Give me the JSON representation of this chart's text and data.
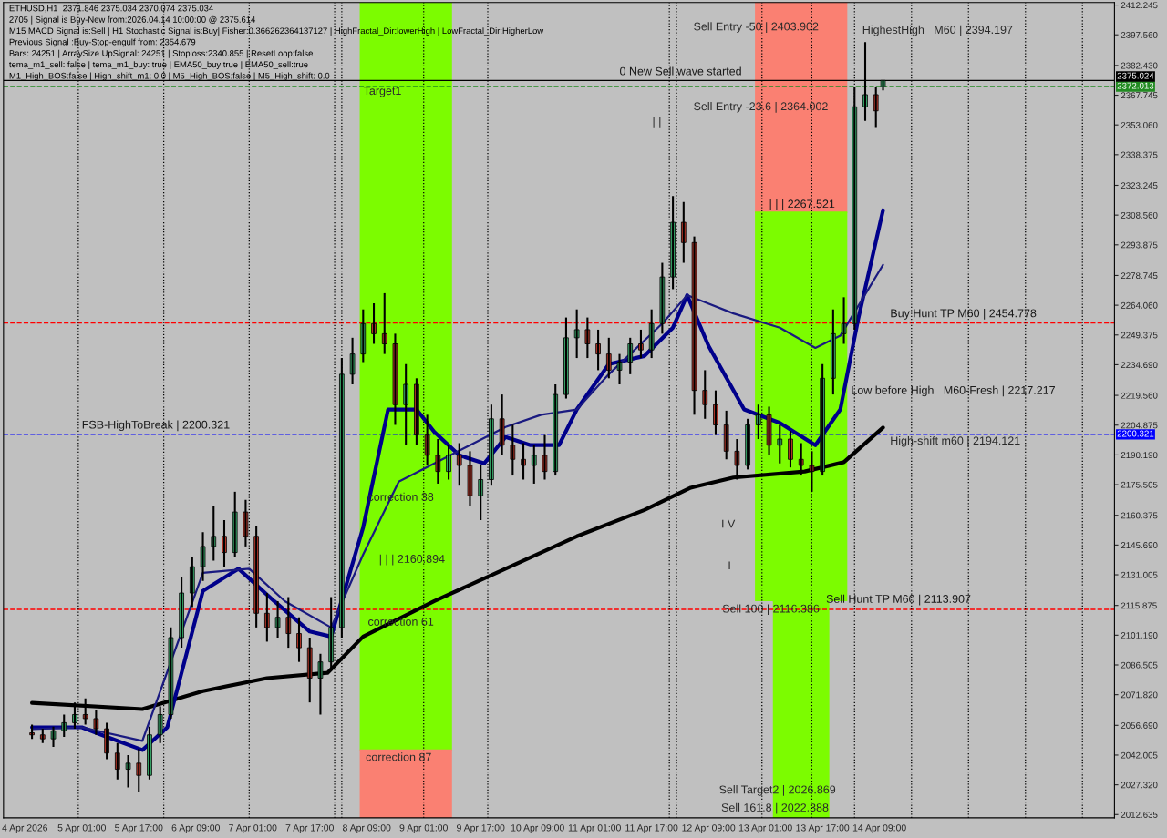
{
  "chart_data": {
    "type": "candlestick",
    "x": [
      "2026-04-04T11:00",
      "2026-04-04T14:00",
      "2026-04-04T17:00",
      "2026-04-04T20:00",
      "2026-04-04T23:00",
      "2026-04-05T02:00",
      "2026-04-05T05:00",
      "2026-04-05T08:00",
      "2026-04-05T11:00",
      "2026-04-05T14:00",
      "2026-04-05T17:00",
      "2026-04-05T20:00",
      "2026-04-05T23:00",
      "2026-04-06T02:00",
      "2026-04-06T05:00",
      "2026-04-06T08:00",
      "2026-04-06T11:00",
      "2026-04-06T14:00",
      "2026-04-06T17:00",
      "2026-04-06T20:00",
      "2026-04-06T23:00",
      "2026-04-07T02:00",
      "2026-04-07T05:00",
      "2026-04-07T08:00",
      "2026-04-07T11:00",
      "2026-04-07T14:00",
      "2026-04-07T17:00",
      "2026-04-07T20:00",
      "2026-04-07T23:00",
      "2026-04-08T02:00",
      "2026-04-08T05:00",
      "2026-04-08T08:00",
      "2026-04-08T11:00",
      "2026-04-08T14:00",
      "2026-04-08T17:00",
      "2026-04-08T20:00",
      "2026-04-08T23:00",
      "2026-04-09T02:00",
      "2026-04-09T05:00",
      "2026-04-09T08:00",
      "2026-04-09T11:00",
      "2026-04-09T14:00",
      "2026-04-09T17:00",
      "2026-04-09T20:00",
      "2026-04-09T23:00",
      "2026-04-10T02:00",
      "2026-04-10T05:00",
      "2026-04-10T08:00",
      "2026-04-10T11:00",
      "2026-04-10T14:00",
      "2026-04-10T17:00",
      "2026-04-10T20:00",
      "2026-04-10T23:00",
      "2026-04-11T02:00",
      "2026-04-11T05:00",
      "2026-04-11T08:00",
      "2026-04-11T11:00",
      "2026-04-11T14:00",
      "2026-04-11T17:00",
      "2026-04-11T20:00",
      "2026-04-11T23:00",
      "2026-04-12T02:00",
      "2026-04-12T05:00",
      "2026-04-12T08:00",
      "2026-04-12T11:00",
      "2026-04-12T14:00",
      "2026-04-12T17:00",
      "2026-04-12T20:00",
      "2026-04-12T23:00",
      "2026-04-13T02:00",
      "2026-04-13T05:00",
      "2026-04-13T08:00",
      "2026-04-13T11:00",
      "2026-04-13T14:00",
      "2026-04-13T17:00",
      "2026-04-13T20:00",
      "2026-04-13T23:00",
      "2026-04-14T02:00",
      "2026-04-14T05:00",
      "2026-04-14T08:00",
      "2026-04-14T10:00"
    ],
    "ohlc": [
      [
        2053,
        2057,
        2050,
        2052
      ],
      [
        2052,
        2055,
        2048,
        2050
      ],
      [
        2050,
        2056,
        2046,
        2054
      ],
      [
        2054,
        2062,
        2051,
        2058
      ],
      [
        2058,
        2068,
        2055,
        2062
      ],
      [
        2062,
        2070,
        2057,
        2060
      ],
      [
        2060,
        2064,
        2052,
        2055
      ],
      [
        2055,
        2058,
        2040,
        2043
      ],
      [
        2043,
        2048,
        2030,
        2035
      ],
      [
        2035,
        2042,
        2026,
        2038
      ],
      [
        2038,
        2045,
        2024,
        2032
      ],
      [
        2032,
        2056,
        2030,
        2052
      ],
      [
        2052,
        2066,
        2048,
        2062
      ],
      [
        2062,
        2105,
        2060,
        2100
      ],
      [
        2100,
        2130,
        2095,
        2122
      ],
      [
        2122,
        2140,
        2115,
        2135
      ],
      [
        2135,
        2152,
        2128,
        2145
      ],
      [
        2145,
        2165,
        2138,
        2150
      ],
      [
        2150,
        2158,
        2135,
        2142
      ],
      [
        2142,
        2172,
        2140,
        2162
      ],
      [
        2162,
        2168,
        2145,
        2150
      ],
      [
        2150,
        2155,
        2105,
        2112
      ],
      [
        2112,
        2122,
        2098,
        2105
      ],
      [
        2105,
        2118,
        2100,
        2110
      ],
      [
        2110,
        2120,
        2095,
        2102
      ],
      [
        2102,
        2110,
        2088,
        2095
      ],
      [
        2095,
        2100,
        2068,
        2080
      ],
      [
        2080,
        2092,
        2062,
        2088
      ],
      [
        2088,
        2120,
        2085,
        2105
      ],
      [
        2105,
        2238,
        2100,
        2230
      ],
      [
        2230,
        2248,
        2225,
        2240
      ],
      [
        2240,
        2262,
        2236,
        2255
      ],
      [
        2255,
        2265,
        2245,
        2250
      ],
      [
        2250,
        2270,
        2240,
        2245
      ],
      [
        2245,
        2250,
        2205,
        2215
      ],
      [
        2215,
        2235,
        2195,
        2225
      ],
      [
        2225,
        2228,
        2195,
        2200
      ],
      [
        2200,
        2210,
        2185,
        2190
      ],
      [
        2190,
        2198,
        2176,
        2182
      ],
      [
        2182,
        2195,
        2178,
        2190
      ],
      [
        2190,
        2196,
        2175,
        2185
      ],
      [
        2185,
        2192,
        2165,
        2170
      ],
      [
        2170,
        2185,
        2158,
        2178
      ],
      [
        2178,
        2215,
        2175,
        2208
      ],
      [
        2208,
        2220,
        2190,
        2195
      ],
      [
        2195,
        2205,
        2180,
        2188
      ],
      [
        2188,
        2196,
        2178,
        2185
      ],
      [
        2185,
        2195,
        2176,
        2190
      ],
      [
        2190,
        2200,
        2178,
        2182
      ],
      [
        2182,
        2225,
        2180,
        2220
      ],
      [
        2220,
        2258,
        2218,
        2248
      ],
      [
        2248,
        2262,
        2238,
        2252
      ],
      [
        2252,
        2258,
        2238,
        2245
      ],
      [
        2245,
        2252,
        2232,
        2240
      ],
      [
        2240,
        2248,
        2228,
        2232
      ],
      [
        2232,
        2240,
        2225,
        2236
      ],
      [
        2236,
        2248,
        2230,
        2245
      ],
      [
        2245,
        2252,
        2238,
        2242
      ],
      [
        2242,
        2262,
        2238,
        2255
      ],
      [
        2255,
        2285,
        2250,
        2278
      ],
      [
        2278,
        2318,
        2272,
        2305
      ],
      [
        2305,
        2315,
        2285,
        2295
      ],
      [
        2295,
        2298,
        2210,
        2222
      ],
      [
        2222,
        2232,
        2208,
        2215
      ],
      [
        2215,
        2222,
        2200,
        2205
      ],
      [
        2205,
        2212,
        2188,
        2192
      ],
      [
        2192,
        2198,
        2178,
        2185
      ],
      [
        2185,
        2208,
        2183,
        2205
      ],
      [
        2205,
        2215,
        2198,
        2210
      ],
      [
        2210,
        2214,
        2190,
        2195
      ],
      [
        2195,
        2205,
        2186,
        2198
      ],
      [
        2198,
        2202,
        2184,
        2188
      ],
      [
        2188,
        2196,
        2180,
        2185
      ],
      [
        2185,
        2192,
        2172,
        2182
      ],
      [
        2182,
        2235,
        2180,
        2228
      ],
      [
        2228,
        2262,
        2220,
        2250
      ],
      [
        2250,
        2268,
        2245,
        2255
      ],
      [
        2255,
        2372,
        2252,
        2362
      ],
      [
        2362,
        2394,
        2355,
        2368
      ],
      [
        2368,
        2372,
        2352,
        2360
      ],
      [
        2371.846,
        2375.034,
        2370.074,
        2375.034
      ]
    ],
    "colors": [
      "#c0392b",
      "#c0392b",
      "#3cb371",
      "#3cb371",
      "#3cb371",
      "#c0392b",
      "#c0392b",
      "#c0392b",
      "#c0392b",
      "#3cb371",
      "#c0392b",
      "#3cb371",
      "#3cb371",
      "#3cb371",
      "#3cb371",
      "#3cb371",
      "#3cb371",
      "#3cb371",
      "#c0392b",
      "#3cb371",
      "#c0392b",
      "#c0392b",
      "#c0392b",
      "#3cb371",
      "#c0392b",
      "#c0392b",
      "#c0392b",
      "#3cb371",
      "#3cb371",
      "#3cb371",
      "#3cb371",
      "#3cb371",
      "#c0392b",
      "#c0392b",
      "#c0392b",
      "#3cb371",
      "#c0392b",
      "#c0392b",
      "#c0392b",
      "#3cb371",
      "#c0392b",
      "#c0392b",
      "#3cb371",
      "#3cb371",
      "#c0392b",
      "#c0392b",
      "#c0392b",
      "#3cb371",
      "#c0392b",
      "#3cb371",
      "#3cb371",
      "#3cb371",
      "#c0392b",
      "#c0392b",
      "#c0392b",
      "#3cb371",
      "#3cb371",
      "#c0392b",
      "#3cb371",
      "#3cb371",
      "#3cb371",
      "#c0392b",
      "#c0392b",
      "#c0392b",
      "#c0392b",
      "#c0392b",
      "#c0392b",
      "#3cb371",
      "#3cb371",
      "#c0392b",
      "#3cb371",
      "#c0392b",
      "#c0392b",
      "#c0392b",
      "#3cb371",
      "#3cb371",
      "#3cb371",
      "#3cb371",
      "#3cb371",
      "#c0392b",
      "#3cb371"
    ],
    "series": [
      {
        "type": "bar",
        "color": "#7cfc00",
        "x": [
          "2026-04-08T20:00"
        ],
        "base": [
          2044.5
        ],
        "values": [
          369
        ],
        "xerrors": [
          0.54
        ]
      },
      {
        "type": "bar",
        "color": "#fa8072",
        "x": [
          "2026-04-08T20:00"
        ],
        "base": [
          2011
        ],
        "values": [
          33.5
        ],
        "xerrors": [
          0.54
        ]
      },
      {
        "type": "bar",
        "color": "#fa8072",
        "x": [
          "2026-04-13T11:00"
        ],
        "base": [
          2310
        ],
        "values": [
          103.5
        ],
        "xerrors": [
          0.54
        ]
      },
      {
        "type": "bar",
        "color": "#7cfc00",
        "x": [
          "2026-04-13T11:00"
        ],
        "base": [
          2118
        ],
        "values": [
          192
        ],
        "xerrors": [
          0.54
        ]
      },
      {
        "type": "bar",
        "color": "#7cfc00",
        "x": [
          "2026-04-13T11:00"
        ],
        "base": [
          2011
        ],
        "values": [
          107
        ],
        "xerrors": [
          0.33
        ]
      },
      {
        "type": "line",
        "color": "#000000",
        "x": [
          "2026-04-04T11:00",
          "2026-04-05T18:00",
          "2026-04-06T11:00",
          "2026-04-07T05:00",
          "2026-04-07T22:00",
          "2026-04-08T08:00",
          "2026-04-09T04:00",
          "2026-04-10T00:00",
          "2026-04-10T20:00",
          "2026-04-11T15:00",
          "2026-04-12T04:00",
          "2026-04-12T16:00",
          "2026-04-13T12:00",
          "2026-04-13T23:00",
          "2026-04-14T10:00"
        ],
        "values": [
          2067.8,
          2064.7,
          2073.6,
          2080,
          2082.6,
          2100.5,
          2118,
          2134,
          2150,
          2163,
          2174,
          2179,
          2182,
          2186.6,
          2203.7
        ]
      },
      {
        "type": "line",
        "color": "#00008b",
        "x": [
          "2026-04-04T11:00",
          "2026-04-05T01:00",
          "2026-04-05T08:00",
          "2026-04-05T18:00",
          "2026-04-06T01:00",
          "2026-04-06T11:00",
          "2026-04-06T21:00",
          "2026-04-07T07:00",
          "2026-04-07T17:00",
          "2026-04-07T23:00",
          "2026-04-08T08:00",
          "2026-04-08T15:00",
          "2026-04-08T23:00",
          "2026-04-09T04:00",
          "2026-04-09T11:00",
          "2026-04-09T18:00",
          "2026-04-10T00:00",
          "2026-04-10T07:00",
          "2026-04-10T15:00",
          "2026-04-10T20:00",
          "2026-04-11T05:00",
          "2026-04-11T15:00",
          "2026-04-11T23:00",
          "2026-04-12T03:00",
          "2026-04-12T09:00",
          "2026-04-12T19:00",
          "2026-04-13T05:00",
          "2026-04-13T15:00",
          "2026-04-13T22:00",
          "2026-04-14T03:00",
          "2026-04-14T10:00"
        ],
        "values": [
          2055.7,
          2055.7,
          2051,
          2044.5,
          2055.7,
          2123,
          2134,
          2118,
          2103,
          2100.5,
          2154.4,
          2212.6,
          2212.6,
          2201.5,
          2190,
          2186,
          2199,
          2195,
          2195,
          2212.6,
          2235,
          2239,
          2253,
          2269,
          2244,
          2212.6,
          2206,
          2195,
          2212.6,
          2257,
          2311
        ]
      },
      {
        "type": "line",
        "color": "#1a1a80",
        "x": [
          "2026-04-04T11:00",
          "2026-04-05T01:00",
          "2026-04-05T18:00",
          "2026-04-06T11:00",
          "2026-04-07T00:00",
          "2026-04-07T10:00",
          "2026-04-07T23:00",
          "2026-04-08T08:00",
          "2026-04-08T18:00",
          "2026-04-09T04:00",
          "2026-04-09T14:00",
          "2026-04-10T00:00",
          "2026-04-10T10:00",
          "2026-04-10T20:00",
          "2026-04-11T05:00",
          "2026-04-11T20:00",
          "2026-04-12T03:00",
          "2026-04-12T16:00",
          "2026-04-13T05:00",
          "2026-04-13T15:00",
          "2026-04-13T22:00",
          "2026-04-14T10:00"
        ],
        "values": [
          2054.8,
          2055.7,
          2049,
          2132,
          2134,
          2118,
          2105,
          2141,
          2177,
          2186,
          2195,
          2204,
          2210,
          2212.6,
          2230,
          2255,
          2269,
          2260,
          2253,
          2243,
          2249,
          2284
        ]
      }
    ],
    "ref_lines": [
      {
        "axis": "y",
        "value": 2375.024,
        "label": "2375.024",
        "color": "#000000",
        "line_style": "solid"
      },
      {
        "axis": "y",
        "value": 2372.013,
        "label": "2372.013",
        "color": "#228b22",
        "line_style": "dashed"
      },
      {
        "axis": "y",
        "value": 2200.321,
        "label": "2200.321",
        "color": "#0000ff",
        "line_style": "dashed"
      },
      {
        "axis": "y",
        "value": 2255.3,
        "color": "#ff0000",
        "line_style": "dashed"
      },
      {
        "axis": "y",
        "value": 2113.907,
        "color": "#ff0000",
        "line_style": "dashed"
      },
      {
        "axis": "x",
        "value": "2026-04-05T00:00",
        "color": "#000000",
        "line_style": "dotted"
      },
      {
        "axis": "x",
        "value": "2026-04-06T00:00",
        "color": "#000000",
        "line_style": "dotted"
      },
      {
        "axis": "x",
        "value": "2026-04-07T00:00",
        "color": "#000000",
        "line_style": "dotted"
      },
      {
        "axis": "x",
        "value": "2026-04-08T00:00",
        "color": "#000000",
        "line_style": "dotted"
      },
      {
        "axis": "x",
        "value": "2026-04-08T02:00",
        "color": "#000000",
        "line_style": "dotted"
      },
      {
        "axis": "x",
        "value": "2026-04-09T01:00",
        "color": "#000000",
        "line_style": "dotted"
      },
      {
        "axis": "x",
        "value": "2026-04-09T19:00",
        "color": "#000000",
        "line_style": "dotted"
      },
      {
        "axis": "x",
        "value": "2026-04-11T22:00",
        "color": "#000000",
        "line_style": "dotted"
      },
      {
        "axis": "x",
        "value": "2026-04-12T00:00",
        "color": "#000000",
        "line_style": "dotted"
      },
      {
        "axis": "x",
        "value": "2026-04-13T00:00",
        "color": "#000000",
        "line_style": "dotted"
      },
      {
        "axis": "x",
        "value": "2026-04-13T14:00",
        "color": "#000000",
        "line_style": "dotted"
      },
      {
        "axis": "x",
        "value": "2026-04-14T02:00",
        "color": "#000000",
        "line_style": "dotted"
      },
      {
        "axis": "x",
        "value": "2026-04-14T18:00",
        "color": "#000000",
        "line_style": "dotted"
      },
      {
        "axis": "x",
        "value": "2026-04-15T10:00",
        "color": "#000000",
        "line_style": "dotted"
      },
      {
        "axis": "x",
        "value": "2026-04-16T02:00",
        "color": "#000000",
        "line_style": "dotted"
      },
      {
        "axis": "x",
        "value": "2026-04-16T18:00",
        "color": "#000000",
        "line_style": "dotted"
      }
    ],
    "annotations": [
      "ETHUSD,H1  2371.846 2375.034 2370.074 2375.034",
      "2705 | Signal is Buy-New from:2026.04.14 10:00:00 @ 2375.614",
      "M15 MACD Signal is:Sell | H1 Stochastic Signal is:Buy| Fisher:0.366262364137127 | HighFractal_Dir:lowerHigh | LowFractal_Dir:HigherLow",
      "Previous Signal :Buy-Stop-engulf from: 2354.679",
      "Bars: 24251 | ArraySize UpSignal: 24251 | Stoploss:2340.855 | ResetLoop:false",
      "tema_m1_sell: false | tema_m1_buy: true | EMA50_buy:true | EMA50_sell:true",
      "M1_High_BOS:false | High_shift_m1: 0.0 | M5_High_BOS:false | M5_High_shift: 0.0",
      "Target1",
      "| | | 2160.894",
      "correction 87",
      "Sell Entry -50 | 2403.902",
      "Sell Entry -23.6 | 2364.002",
      "| |",
      "HighestHigh   M60 | 2394.197",
      "I V",
      "I",
      "Sell 100 | 2116.386",
      "Sell Target2 | 2026.869",
      "Sell 161.8 | 2022.388",
      "correction 38",
      "correction 61",
      "High-shift m60 | 2194.121",
      {
        "text": "FSB-HighToBreak | 2200.321",
        "x": "2026-04-05T01:00",
        "y": 2202
      },
      {
        "text": "0 New Sell wave started",
        "x": "2026-04-11T08:00",
        "y": 2376.5
      },
      {
        "text": "| | | 2267.521",
        "x": "2026-04-13T02:00",
        "y": 2311
      },
      {
        "text": "Buy Hunt TP M60 | 2454.778",
        "x": "2026-04-14T12:00",
        "y": 2257
      },
      {
        "text": "Low before High   M60-Fresh | 2217.217",
        "x": "2026-04-14T01:00",
        "y": 2219
      },
      {
        "text": "Sell Hunt TP M60 | 2113.907",
        "x": "2026-04-13T18:00",
        "y": 2116
      }
    ],
    "xlim": [
      "2026-04-04T03:00",
      "2026-04-17T03:00"
    ],
    "ylim": [
      2011,
      2413.5
    ],
    "xticks": [
      {
        "value": "2026-04-04T09:00",
        "label": "4 Apr 2026"
      },
      {
        "value": "2026-04-05T01:00",
        "label": "5 Apr 01:00"
      },
      {
        "value": "2026-04-05T17:00",
        "label": "5 Apr 17:00"
      },
      {
        "value": "2026-04-06T09:00",
        "label": "6 Apr 09:00"
      },
      {
        "value": "2026-04-07T01:00",
        "label": "7 Apr 01:00"
      },
      {
        "value": "2026-04-07T17:00",
        "label": "7 Apr 17:00"
      },
      {
        "value": "2026-04-08T09:00",
        "label": "8 Apr 09:00"
      },
      {
        "value": "2026-04-09T01:00",
        "label": "9 Apr 01:00"
      },
      {
        "value": "2026-04-09T17:00",
        "label": "9 Apr 17:00"
      },
      {
        "value": "2026-04-10T09:00",
        "label": "10 Apr 09:00"
      },
      {
        "value": "2026-04-11T01:00",
        "label": "11 Apr 01:00"
      },
      {
        "value": "2026-04-11T17:00",
        "label": "11 Apr 17:00"
      },
      {
        "value": "2026-04-12T09:00",
        "label": "12 Apr 09:00"
      },
      {
        "value": "2026-04-13T01:00",
        "label": "13 Apr 01:00"
      },
      {
        "value": "2026-04-13T17:00",
        "label": "13 Apr 17:00"
      },
      {
        "value": "2026-04-14T09:00",
        "label": "14 Apr 09:00"
      }
    ],
    "yticks": [
      2412.245,
      {
        "value": 2397.56,
        "label": "2397.560"
      },
      {
        "value": 2382.43,
        "label": "2382.430"
      },
      2367.745,
      {
        "value": 2353.06,
        "label": "2353.060"
      },
      2338.375,
      2323.245,
      {
        "value": 2308.56,
        "label": "2308.560"
      },
      2293.875,
      2278.745,
      {
        "value": 2264.06,
        "label": "2264.060"
      },
      2249.375,
      {
        "value": 2234.69,
        "label": "2234.690"
      },
      {
        "value": 2219.56,
        "label": "2219.560"
      },
      2204.875,
      {
        "value": 2190.19,
        "label": "2190.190"
      },
      2175.505,
      2160.375,
      {
        "value": 2145.69,
        "label": "2145.690"
      },
      2131.005,
      2115.875,
      {
        "value": 2101.19,
        "label": "2101.190"
      },
      2086.505,
      {
        "value": 2071.82,
        "label": "2071.820"
      },
      {
        "value": 2056.69,
        "label": "2056.690"
      },
      2042.005,
      {
        "value": 2027.32,
        "label": "2027.320"
      },
      2012.635
    ],
    "grid": false,
    "legend": false
  }
}
